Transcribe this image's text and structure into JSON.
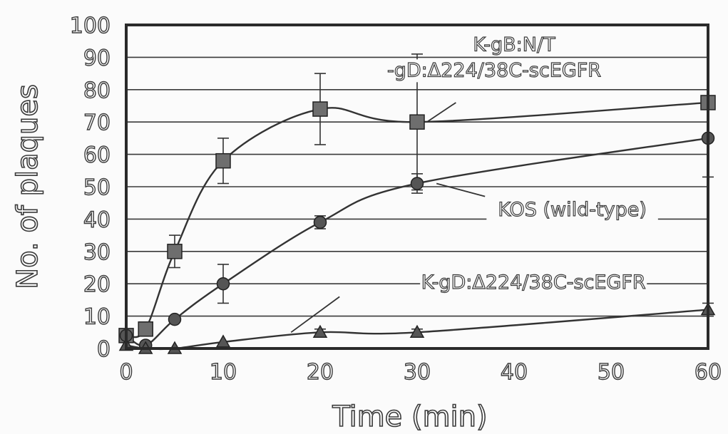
{
  "chart_data": {
    "type": "line",
    "xlabel": "Time (min)",
    "ylabel": "No. of plaques",
    "xlim": [
      0,
      60
    ],
    "ylim": [
      0,
      100
    ],
    "xticks": [
      0,
      10,
      20,
      30,
      40,
      50,
      60
    ],
    "yticks": [
      0,
      10,
      20,
      30,
      40,
      50,
      60,
      70,
      80,
      90,
      100
    ],
    "grid": "horizontal",
    "series": [
      {
        "name": "K-gB:N/T -gD:Δ224/38C-scEGFR",
        "marker": "square",
        "x": [
          0,
          2,
          5,
          10,
          20,
          30,
          60
        ],
        "y": [
          4,
          6,
          30,
          58,
          74,
          70,
          76
        ],
        "err": [
          0,
          0,
          5,
          7,
          11,
          21,
          0
        ]
      },
      {
        "name": "KOS (wild-type)",
        "marker": "circle",
        "x": [
          0,
          2,
          5,
          10,
          20,
          30,
          60
        ],
        "y": [
          4,
          1,
          9,
          20,
          39,
          51,
          65
        ],
        "err": [
          0,
          0,
          0,
          6,
          2,
          3,
          12
        ]
      },
      {
        "name": "K-gD:Δ224/38C-scEGFR",
        "marker": "triangle",
        "x": [
          0,
          2,
          5,
          10,
          20,
          30,
          60
        ],
        "y": [
          1,
          0,
          0,
          2,
          5,
          5,
          12
        ],
        "err": [
          0,
          0,
          0,
          0,
          1,
          1,
          2
        ]
      }
    ],
    "annotations": [
      {
        "lines": [
          "K-gB:N/T",
          "-gD:Δ224/38C-scEGFR"
        ],
        "series": 0
      },
      {
        "lines": [
          "KOS (wild-type)"
        ],
        "series": 1
      },
      {
        "lines": [
          "K-gD:Δ224/38C-scEGFR"
        ],
        "series": 2
      }
    ]
  }
}
